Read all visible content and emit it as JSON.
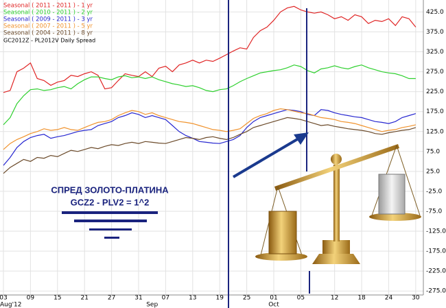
{
  "chart_data": {
    "type": "line",
    "subtitle": "GC2012Z - PL2012V Daily Spread",
    "categories": [
      "03",
      null,
      null,
      null,
      "09",
      null,
      null,
      null,
      "15",
      null,
      null,
      null,
      "21",
      null,
      null,
      null,
      "27",
      null,
      null,
      null,
      "31",
      null,
      null,
      null,
      "07",
      null,
      null,
      null,
      "13",
      null,
      null,
      null,
      "19",
      null,
      null,
      null,
      "25",
      null,
      null,
      null,
      "01",
      null,
      null,
      null,
      "05",
      null,
      null,
      null,
      null,
      "12",
      null,
      null,
      null,
      "18",
      null,
      null,
      null,
      "24",
      null,
      null,
      null,
      "30"
    ],
    "month_labels": [
      "Aug'12",
      null,
      null,
      null,
      null,
      null,
      null,
      null,
      null,
      null,
      null,
      null,
      null,
      null,
      null,
      null,
      null,
      null,
      null,
      null,
      null,
      null,
      "Sep",
      null,
      null,
      null,
      null,
      null,
      null,
      null,
      null,
      null,
      null,
      null,
      null,
      null,
      null,
      null,
      null,
      null,
      "Oct",
      null,
      null,
      null,
      null,
      null,
      null,
      null,
      null,
      null,
      null,
      null,
      null,
      null,
      null,
      null,
      null,
      null,
      null,
      null,
      null,
      null
    ],
    "series": [
      {
        "name": "Seasonal ( 2011 - 2011 ) - 1 yr",
        "color": "#e02424",
        "values": [
          223,
          228,
          275,
          284,
          297,
          258,
          253,
          241,
          249,
          253,
          266,
          263,
          270,
          275,
          266,
          232,
          235,
          253,
          270,
          266,
          263,
          275,
          263,
          284,
          289,
          275,
          292,
          297,
          304,
          297,
          304,
          301,
          309,
          318,
          327,
          335,
          332,
          361,
          378,
          387,
          404,
          425,
          435,
          439,
          430,
          425,
          422,
          425,
          418,
          408,
          413,
          404,
          418,
          413,
          396,
          404,
          401,
          408,
          391,
          413,
          408,
          387
        ]
      },
      {
        "name": "Seasonal ( 2010 - 2011 ) - 2 yr",
        "color": "#2ed02e",
        "values": [
          142,
          160,
          195,
          215,
          230,
          232,
          228,
          230,
          235,
          238,
          232,
          245,
          255,
          262,
          262,
          258,
          255,
          262,
          265,
          260,
          262,
          258,
          262,
          255,
          250,
          245,
          242,
          238,
          240,
          235,
          228,
          225,
          230,
          232,
          240,
          250,
          258,
          265,
          272,
          275,
          278,
          280,
          285,
          292,
          288,
          278,
          272,
          282,
          285,
          290,
          285,
          282,
          288,
          292,
          285,
          280,
          275,
          272,
          270,
          265,
          258,
          258
        ]
      },
      {
        "name": "Seasonal ( 2009 - 2011 ) - 3 yr",
        "color": "#2626d0",
        "values": [
          40,
          60,
          85,
          100,
          110,
          115,
          118,
          108,
          112,
          115,
          120,
          125,
          128,
          130,
          140,
          145,
          150,
          160,
          165,
          172,
          168,
          160,
          165,
          160,
          155,
          140,
          125,
          115,
          108,
          100,
          98,
          96,
          95,
          100,
          105,
          115,
          135,
          150,
          160,
          165,
          170,
          175,
          180,
          178,
          175,
          168,
          165,
          180,
          178,
          172,
          168,
          165,
          162,
          160,
          155,
          150,
          148,
          145,
          150,
          160,
          165,
          170
        ]
      },
      {
        "name": "Seasonal ( 2007 - 2011 ) - 5 yr",
        "color": "#f0922c",
        "values": [
          80,
          95,
          105,
          112,
          120,
          125,
          132,
          128,
          130,
          135,
          130,
          128,
          135,
          142,
          148,
          150,
          155,
          165,
          172,
          178,
          175,
          168,
          172,
          165,
          160,
          155,
          150,
          148,
          145,
          140,
          135,
          130,
          128,
          125,
          128,
          132,
          145,
          158,
          165,
          170,
          178,
          182,
          180,
          176,
          172,
          170,
          165,
          160,
          158,
          155,
          150,
          148,
          145,
          140,
          135,
          130,
          125,
          128,
          130,
          135,
          138,
          142
        ]
      },
      {
        "name": "Seasonal ( 2004 - 2011 ) - 8 yr",
        "color": "#6b4a2a",
        "values": [
          20,
          35,
          45,
          55,
          50,
          60,
          58,
          65,
          62,
          70,
          78,
          75,
          80,
          85,
          82,
          88,
          92,
          90,
          95,
          98,
          95,
          100,
          98,
          96,
          95,
          100,
          105,
          110,
          108,
          105,
          110,
          112,
          108,
          105,
          110,
          118,
          125,
          135,
          140,
          145,
          150,
          155,
          160,
          158,
          155,
          150,
          145,
          140,
          142,
          138,
          135,
          132,
          130,
          128,
          125,
          120,
          118,
          122,
          125,
          128,
          130,
          135
        ]
      }
    ],
    "ylim": [
      -285,
      455
    ],
    "yticks": [
      {
        "value": 425,
        "label": "425.0"
      },
      {
        "value": 375,
        "label": "375.0"
      },
      {
        "value": 325,
        "label": "325.0"
      },
      {
        "value": 275,
        "label": "275.0"
      },
      {
        "value": 225,
        "label": "225.0"
      },
      {
        "value": 175,
        "label": "175.0"
      },
      {
        "value": 125,
        "label": "125.0"
      },
      {
        "value": 75,
        "label": "75.0"
      },
      {
        "value": 25,
        "label": "25.0"
      },
      {
        "value": -25,
        "label": "-25.0"
      },
      {
        "value": -75,
        "label": "-75.0"
      },
      {
        "value": -125,
        "label": "-125.0"
      },
      {
        "value": -175,
        "label": "-175.0"
      },
      {
        "value": -225,
        "label": "-225.0"
      },
      {
        "value": -275,
        "label": "-275.0"
      }
    ],
    "grid": true,
    "annotations": [
      "СПРЕД ЗОЛОТО-ПЛАТИНА",
      "GCZ2 - PLV2 = 1^2"
    ]
  }
}
